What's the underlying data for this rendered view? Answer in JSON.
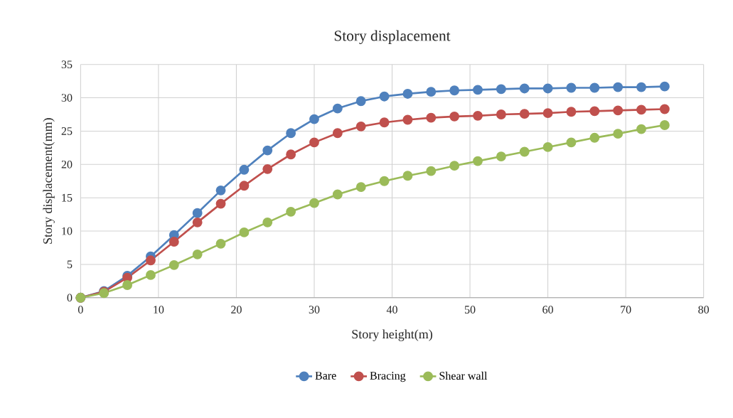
{
  "chart_data": {
    "type": "line",
    "title": "Story displacement",
    "xlabel": "Story height(m)",
    "ylabel": "Story displacement(mm)",
    "x": [
      0,
      3,
      6,
      9,
      12,
      15,
      18,
      21,
      24,
      27,
      30,
      33,
      36,
      39,
      42,
      45,
      48,
      51,
      54,
      57,
      60,
      63,
      66,
      69,
      72,
      75
    ],
    "series": [
      {
        "name": "Bare",
        "color": "#4f81bd",
        "values": [
          0,
          1.0,
          3.3,
          6.2,
          9.4,
          12.7,
          16.1,
          19.2,
          22.1,
          24.7,
          26.8,
          28.4,
          29.5,
          30.2,
          30.6,
          30.9,
          31.1,
          31.2,
          31.3,
          31.4,
          31.4,
          31.5,
          31.5,
          31.6,
          31.6,
          31.7
        ]
      },
      {
        "name": "Bracing",
        "color": "#c0504d",
        "values": [
          0,
          0.9,
          3.0,
          5.6,
          8.4,
          11.3,
          14.1,
          16.8,
          19.3,
          21.5,
          23.3,
          24.7,
          25.7,
          26.3,
          26.7,
          27.0,
          27.2,
          27.3,
          27.5,
          27.6,
          27.7,
          27.9,
          28.0,
          28.1,
          28.2,
          28.3
        ]
      },
      {
        "name": "Shear wall",
        "color": "#9bbb59",
        "values": [
          0,
          0.7,
          1.9,
          3.4,
          4.9,
          6.5,
          8.1,
          9.8,
          11.3,
          12.9,
          14.2,
          15.5,
          16.6,
          17.5,
          18.3,
          19.0,
          19.8,
          20.5,
          21.2,
          21.9,
          22.6,
          23.3,
          24.0,
          24.6,
          25.3,
          25.9
        ]
      }
    ],
    "xlim": [
      0,
      80
    ],
    "xticks": [
      0,
      10,
      20,
      30,
      40,
      50,
      60,
      70,
      80
    ],
    "ylim": [
      0,
      35
    ],
    "yticks": [
      0,
      5,
      10,
      15,
      20,
      25,
      30,
      35
    ],
    "grid": true,
    "legend": "bottom",
    "marker": "circle",
    "line_style": "solid"
  }
}
